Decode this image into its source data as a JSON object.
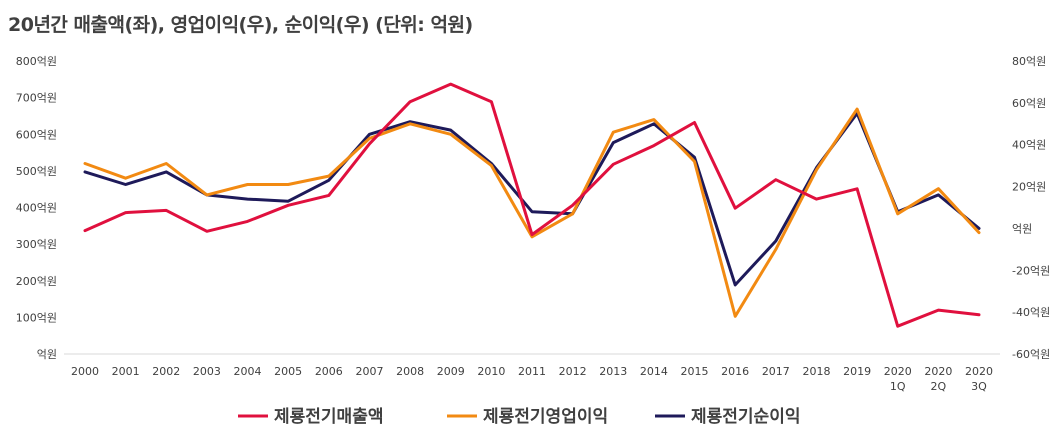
{
  "chart_data": {
    "type": "line",
    "title": "20년간 매출액(좌), 영업이익(우), 순이익(우) (단위: 억원)",
    "categories": [
      [
        "2000"
      ],
      [
        "2001"
      ],
      [
        "2002"
      ],
      [
        "2003"
      ],
      [
        "2004"
      ],
      [
        "2005"
      ],
      [
        "2006"
      ],
      [
        "2007"
      ],
      [
        "2008"
      ],
      [
        "2009"
      ],
      [
        "2010"
      ],
      [
        "2011"
      ],
      [
        "2012"
      ],
      [
        "2013"
      ],
      [
        "2014"
      ],
      [
        "2015"
      ],
      [
        "2016"
      ],
      [
        "2017"
      ],
      [
        "2018"
      ],
      [
        "2019"
      ],
      [
        "2020",
        "1Q"
      ],
      [
        "2020",
        "2Q"
      ],
      [
        "2020",
        "3Q"
      ]
    ],
    "left_axis": {
      "ylim": [
        0,
        800
      ],
      "ticks": [
        0,
        100,
        200,
        300,
        400,
        500,
        600,
        700,
        800
      ],
      "tick_labels": [
        "억원",
        "100억원",
        "200억원",
        "300억원",
        "400억원",
        "500억원",
        "600억원",
        "700억원",
        "800억원"
      ]
    },
    "right_axis": {
      "ylim": [
        -60,
        80
      ],
      "ticks": [
        -60,
        -40,
        -20,
        0,
        20,
        40,
        60,
        80
      ],
      "tick_labels": [
        "-60억원",
        "-40억원",
        "-20억원",
        "억원",
        "20억원",
        "40억원",
        "60억원",
        "80억원"
      ]
    },
    "series": [
      {
        "name": "제룡전기매출액",
        "axis": "left",
        "color": "#e0103e",
        "values": [
          337,
          386,
          392,
          335,
          362,
          406,
          433,
          574,
          689,
          737,
          689,
          326,
          406,
          518,
          569,
          632,
          398,
          476,
          423,
          451,
          76,
          120,
          107
        ]
      },
      {
        "name": "제룡전기영업이익",
        "axis": "right",
        "color": "#f28a12",
        "values": [
          31,
          24,
          31,
          16,
          21,
          21,
          25,
          43,
          50,
          45,
          30,
          -4,
          7,
          46,
          52,
          32,
          -42,
          -10,
          28,
          57,
          7,
          19,
          -2
        ]
      },
      {
        "name": "제룡전기순이익",
        "axis": "right",
        "color": "#1e1a5a",
        "values": [
          27,
          21,
          27,
          16,
          14,
          13,
          23,
          45,
          51,
          47,
          31,
          8,
          7,
          41,
          50,
          34,
          -27,
          -6,
          29,
          55,
          8,
          16,
          0
        ]
      }
    ],
    "grid": false,
    "legend_position": "bottom"
  }
}
